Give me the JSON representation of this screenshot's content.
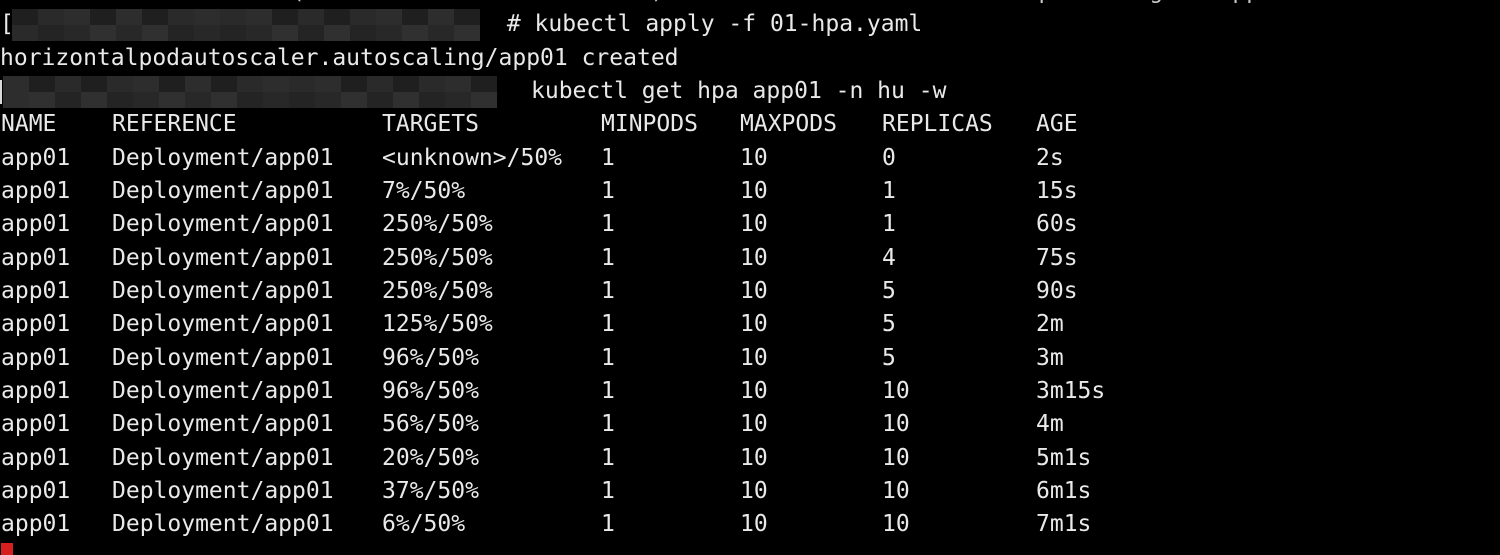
{
  "terminal": {
    "colors": {
      "background": "#000000",
      "foreground": "#e9e9e9",
      "cursor_red": "#d61f1f"
    },
    "clipped_previous_line": "                     (                         )                           p       g     pp",
    "command1": {
      "prompt_prefix": "[",
      "prompt_redacted": true,
      "command": "# kubectl apply -f 01-hpa.yaml"
    },
    "output1": "horizontalpodautoscaler.autoscaling/app01 created",
    "command2": {
      "prompt_redacted": true,
      "command": "kubectl get hpa app01 -n hu -w"
    },
    "hpa_watch_table": {
      "columns": [
        "NAME",
        "REFERENCE",
        "TARGETS",
        "MINPODS",
        "MAXPODS",
        "REPLICAS",
        "AGE"
      ],
      "rows": [
        {
          "name": "app01",
          "reference": "Deployment/app01",
          "targets": "<unknown>/50%",
          "minpods": "1",
          "maxpods": "10",
          "replicas": "0",
          "age": "2s"
        },
        {
          "name": "app01",
          "reference": "Deployment/app01",
          "targets": "7%/50%",
          "minpods": "1",
          "maxpods": "10",
          "replicas": "1",
          "age": "15s"
        },
        {
          "name": "app01",
          "reference": "Deployment/app01",
          "targets": "250%/50%",
          "minpods": "1",
          "maxpods": "10",
          "replicas": "1",
          "age": "60s"
        },
        {
          "name": "app01",
          "reference": "Deployment/app01",
          "targets": "250%/50%",
          "minpods": "1",
          "maxpods": "10",
          "replicas": "4",
          "age": "75s"
        },
        {
          "name": "app01",
          "reference": "Deployment/app01",
          "targets": "250%/50%",
          "minpods": "1",
          "maxpods": "10",
          "replicas": "5",
          "age": "90s"
        },
        {
          "name": "app01",
          "reference": "Deployment/app01",
          "targets": "125%/50%",
          "minpods": "1",
          "maxpods": "10",
          "replicas": "5",
          "age": "2m"
        },
        {
          "name": "app01",
          "reference": "Deployment/app01",
          "targets": "96%/50%",
          "minpods": "1",
          "maxpods": "10",
          "replicas": "5",
          "age": "3m"
        },
        {
          "name": "app01",
          "reference": "Deployment/app01",
          "targets": "96%/50%",
          "minpods": "1",
          "maxpods": "10",
          "replicas": "10",
          "age": "3m15s"
        },
        {
          "name": "app01",
          "reference": "Deployment/app01",
          "targets": "56%/50%",
          "minpods": "1",
          "maxpods": "10",
          "replicas": "10",
          "age": "4m"
        },
        {
          "name": "app01",
          "reference": "Deployment/app01",
          "targets": "20%/50%",
          "minpods": "1",
          "maxpods": "10",
          "replicas": "10",
          "age": "5m1s"
        },
        {
          "name": "app01",
          "reference": "Deployment/app01",
          "targets": "37%/50%",
          "minpods": "1",
          "maxpods": "10",
          "replicas": "10",
          "age": "6m1s"
        },
        {
          "name": "app01",
          "reference": "Deployment/app01",
          "targets": "6%/50%",
          "minpods": "1",
          "maxpods": "10",
          "replicas": "10",
          "age": "7m1s"
        }
      ]
    }
  }
}
